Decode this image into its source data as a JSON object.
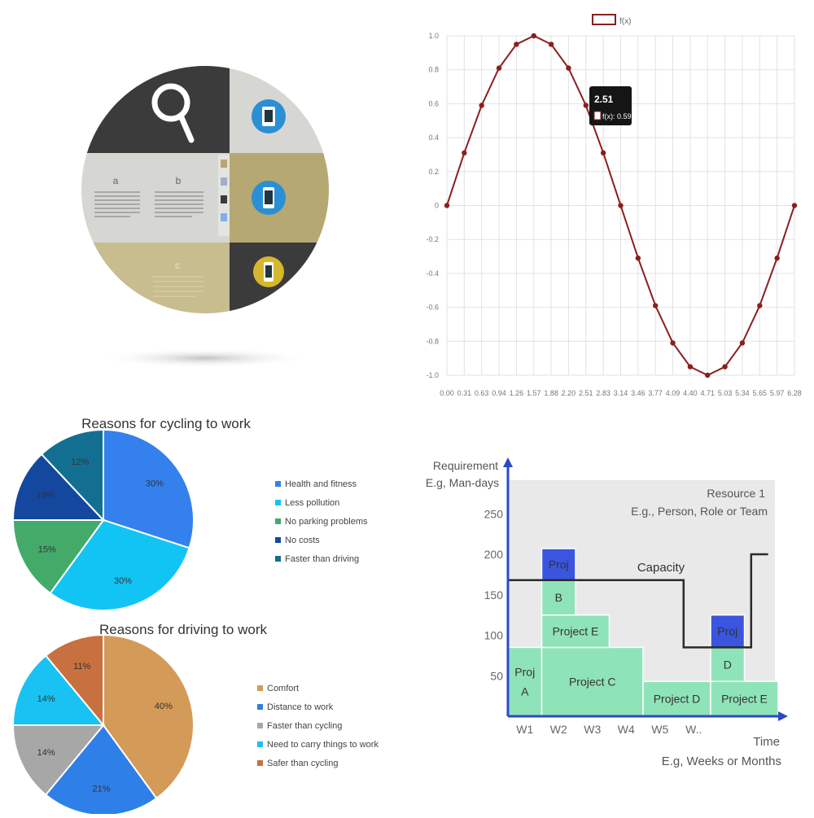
{
  "colors": {
    "dark": "#3b3b3b",
    "light": "#d6d7d2",
    "olive": "#b5a873",
    "khaki": "#c7bd8f",
    "icon_blue": "#2a8fd4",
    "icon_yellow": "#d6b62c",
    "sine_line": "#8a1f1f",
    "grid": "#e2e2e2",
    "gantt_blue": "#3a55e0",
    "gantt_green": "#8fe3b8",
    "gantt_bg": "#e9e9e9",
    "axis_blue": "#2b49c9"
  },
  "infographic": {
    "label_a": "a",
    "label_b": "b",
    "label_c": "c",
    "icons": [
      "search-icon",
      "tablet-icon",
      "phone-icon",
      "phone-icon"
    ]
  },
  "chart_data": [
    {
      "type": "line",
      "legend": "f(x)",
      "legend_position": "top-center",
      "x": [
        0.0,
        0.31,
        0.63,
        0.94,
        1.26,
        1.57,
        1.88,
        2.2,
        2.51,
        2.83,
        3.14,
        3.46,
        3.77,
        4.09,
        4.4,
        4.71,
        5.03,
        5.34,
        5.65,
        5.97,
        6.28
      ],
      "x_tick_labels": [
        "0.00",
        "0.31",
        "0.63",
        "0.94",
        "1.26",
        "1.57",
        "1.88",
        "2.20",
        "2.51",
        "2.83",
        "3.14",
        "3.46",
        "3.77",
        "4.09",
        "4.40",
        "4.71",
        "5.03",
        "5.34",
        "5.65",
        "5.97",
        "6.28"
      ],
      "y": [
        0.0,
        0.31,
        0.59,
        0.81,
        0.95,
        1.0,
        0.95,
        0.81,
        0.59,
        0.31,
        0.0,
        -0.31,
        -0.59,
        -0.81,
        -0.95,
        -1.0,
        -0.95,
        -0.81,
        -0.59,
        -0.31,
        0.0
      ],
      "y_tick_labels": [
        "1.0",
        "0.8",
        "0.6",
        "0.4",
        "0.2",
        "0",
        "-0.2",
        "-0.4",
        "-0.6",
        "-0.8",
        "-1.0"
      ],
      "ylim": [
        -1.0,
        1.0
      ],
      "grid": true,
      "tooltip": {
        "title": "2.51",
        "text": "f(x): 0.59",
        "point_index": 8
      }
    },
    {
      "type": "pie",
      "title": "Reasons for cycling to work",
      "categories": [
        "Health and fitness",
        "Less pollution",
        "No parking problems",
        "No costs",
        "Faster than driving"
      ],
      "values": [
        30,
        30,
        15,
        13,
        12
      ],
      "labels": [
        "30%",
        "30%",
        "15%",
        "13%",
        "12%"
      ],
      "colors": [
        "#3480ec",
        "#12c4f4",
        "#44aa6a",
        "#14479e",
        "#136f92"
      ],
      "legend_position": "right"
    },
    {
      "type": "pie",
      "title": "Reasons for driving to work",
      "categories": [
        "Comfort",
        "Distance to work",
        "Faster than cycling",
        "Need to carry things to work",
        "Safer than cycling"
      ],
      "values": [
        40,
        21,
        14,
        14,
        11
      ],
      "labels": [
        "40%",
        "21%",
        "14%",
        "14%",
        "11%"
      ],
      "colors": [
        "#d39a58",
        "#2f7fe8",
        "#a7a7a7",
        "#18c2f2",
        "#c87040"
      ],
      "legend_position": "right"
    },
    {
      "type": "bar",
      "subtype": "stacked-gantt",
      "ylabel": "Requirement",
      "ylabel_sub": "E.g, Man-days",
      "xlabel": "Time",
      "xlabel_sub": "E.g, Weeks or Months",
      "resource_title": "Resource 1",
      "resource_sub": "E.g., Person, Role or Team",
      "capacity_label": "Capacity",
      "categories": [
        "W1",
        "W2",
        "W3",
        "W4",
        "W5",
        "W.."
      ],
      "y_ticks": [
        50,
        100,
        150,
        200,
        250
      ],
      "ylim": [
        0,
        300
      ],
      "blocks": [
        {
          "label": "Proj\nA",
          "start": 0,
          "end": 1,
          "low": 0,
          "high": 85,
          "color": "green"
        },
        {
          "label": "Project C",
          "start": 1,
          "end": 4,
          "low": 0,
          "high": 85,
          "color": "green"
        },
        {
          "label": "Project E",
          "start": 1,
          "end": 3,
          "low": 85,
          "high": 125,
          "color": "green"
        },
        {
          "label": "B",
          "start": 1,
          "end": 2,
          "low": 125,
          "high": 168,
          "color": "green"
        },
        {
          "label": "Proj",
          "start": 1,
          "end": 2,
          "low": 168,
          "high": 207,
          "color": "blue"
        },
        {
          "label": "Project D",
          "start": 4,
          "end": 6,
          "low": 0,
          "high": 43,
          "color": "green"
        },
        {
          "label": "D",
          "start": 6,
          "end": 7,
          "low": 43,
          "high": 85,
          "color": "green"
        },
        {
          "label": "Proj",
          "start": 6,
          "end": 7,
          "low": 85,
          "high": 125,
          "color": "blue"
        },
        {
          "label": "Project E",
          "start": 6,
          "end": 8,
          "low": 0,
          "high": 43,
          "color": "green"
        }
      ],
      "capacity": [
        {
          "x": 0,
          "y": 168
        },
        {
          "x": 5.2,
          "y": 168
        },
        {
          "x": 5.2,
          "y": 85
        },
        {
          "x": 7.2,
          "y": 85
        },
        {
          "x": 7.2,
          "y": 200
        },
        {
          "x": 7.7,
          "y": 200
        }
      ]
    }
  ]
}
